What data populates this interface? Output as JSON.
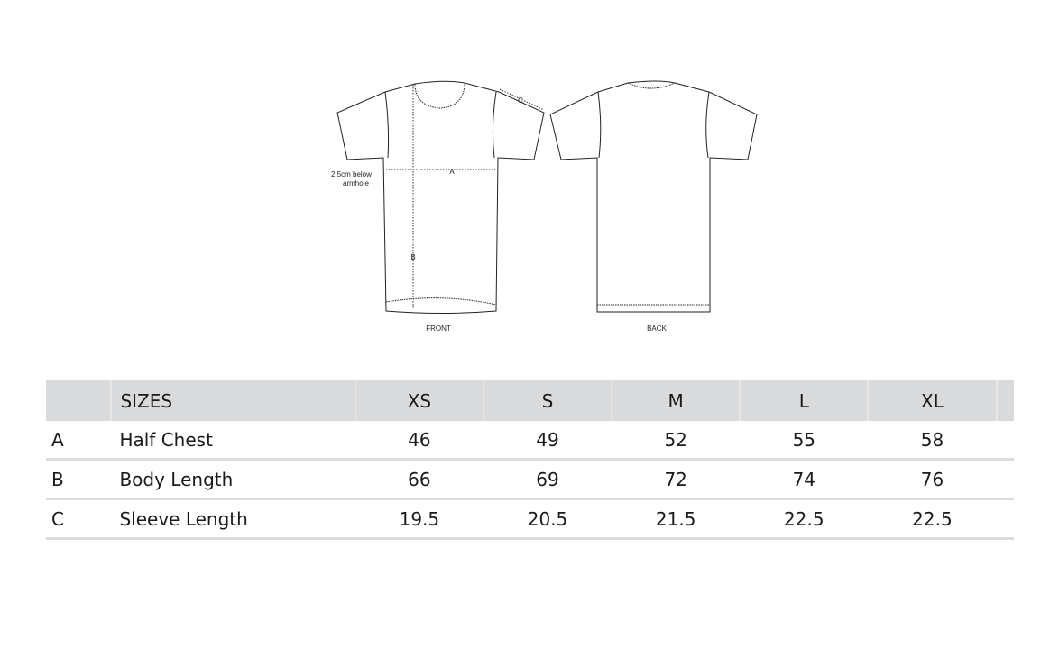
{
  "diagram": {
    "front_label": "FRONT",
    "back_label": "BACK",
    "measure_a": "A",
    "measure_b": "B",
    "measure_c": "C",
    "note_line1": "2.5cm below",
    "note_line2": "armhole"
  },
  "table": {
    "header": {
      "letter": "",
      "label": "SIZES",
      "sizes": [
        "XS",
        "S",
        "M",
        "L",
        "XL"
      ]
    },
    "rows": [
      {
        "letter": "A",
        "label": "Half Chest",
        "values": [
          "46",
          "49",
          "52",
          "55",
          "58"
        ]
      },
      {
        "letter": "B",
        "label": "Body Length",
        "values": [
          "66",
          "69",
          "72",
          "74",
          "76"
        ]
      },
      {
        "letter": "C",
        "label": "Sleeve Length",
        "values": [
          "19.5",
          "20.5",
          "21.5",
          "22.5",
          "22.5"
        ]
      }
    ]
  },
  "colors": {
    "header_bg": "#d9dadb",
    "row_divider": "#dcdcdc"
  }
}
